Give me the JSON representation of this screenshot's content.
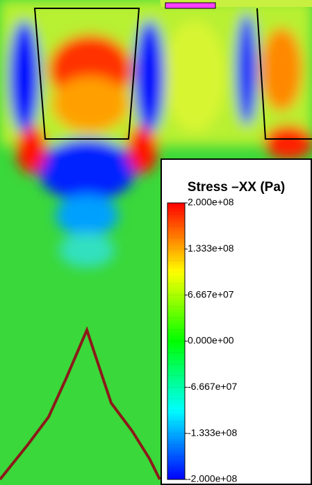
{
  "chart_data": {
    "type": "contour",
    "colorbar": {
      "title": "Stress –XX (Pa)",
      "clim": [
        -200000000,
        200000000
      ],
      "colors": [
        "#0000ff",
        "#00ffff",
        "#00ff00",
        "#ffff00",
        "#ff0000"
      ],
      "ticks": [
        {
          "value": 200000000,
          "label": "2.000e+08"
        },
        {
          "value": 133300000,
          "label": "1.333e+08"
        },
        {
          "value": 66670000,
          "label": "6.667e+07"
        },
        {
          "value": 0,
          "label": "0.000e+00"
        },
        {
          "value": -66670000,
          "label": "-6.667e+07"
        },
        {
          "value": -133300000,
          "label": "-1.333e+08"
        },
        {
          "value": -200000000,
          "label": "-2.000e+08"
        }
      ]
    }
  }
}
